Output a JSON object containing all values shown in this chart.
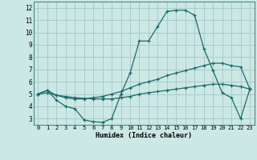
{
  "xlabel": "Humidex (Indice chaleur)",
  "x_values": [
    0,
    1,
    2,
    3,
    4,
    5,
    6,
    7,
    8,
    9,
    10,
    11,
    12,
    13,
    14,
    15,
    16,
    17,
    18,
    19,
    20,
    21,
    22,
    23
  ],
  "line1_y": [
    5.0,
    5.3,
    4.5,
    4.0,
    3.8,
    2.9,
    2.75,
    2.7,
    3.0,
    5.0,
    6.7,
    9.3,
    9.3,
    10.5,
    11.7,
    11.8,
    11.8,
    11.4,
    8.7,
    6.9,
    5.1,
    4.7,
    3.0,
    5.4
  ],
  "line2_y": [
    5.0,
    5.3,
    4.9,
    4.7,
    4.6,
    4.6,
    4.7,
    4.8,
    5.0,
    5.2,
    5.5,
    5.8,
    6.0,
    6.2,
    6.5,
    6.7,
    6.9,
    7.1,
    7.3,
    7.5,
    7.5,
    7.3,
    7.2,
    5.4
  ],
  "line3_y": [
    5.0,
    5.1,
    4.9,
    4.8,
    4.7,
    4.65,
    4.6,
    4.6,
    4.6,
    4.7,
    4.8,
    5.0,
    5.1,
    5.2,
    5.3,
    5.4,
    5.5,
    5.6,
    5.7,
    5.8,
    5.8,
    5.7,
    5.6,
    5.4
  ],
  "bg_color": "#cce8e4",
  "grid_color": "#a8ccca",
  "line_color": "#1a6b6b",
  "ylim": [
    2.5,
    12.5
  ],
  "xlim": [
    -0.5,
    23.5
  ],
  "yticks": [
    3,
    4,
    5,
    6,
    7,
    8,
    9,
    10,
    11,
    12
  ],
  "xticks": [
    0,
    1,
    2,
    3,
    4,
    5,
    6,
    7,
    8,
    9,
    10,
    11,
    12,
    13,
    14,
    15,
    16,
    17,
    18,
    19,
    20,
    21,
    22,
    23
  ]
}
